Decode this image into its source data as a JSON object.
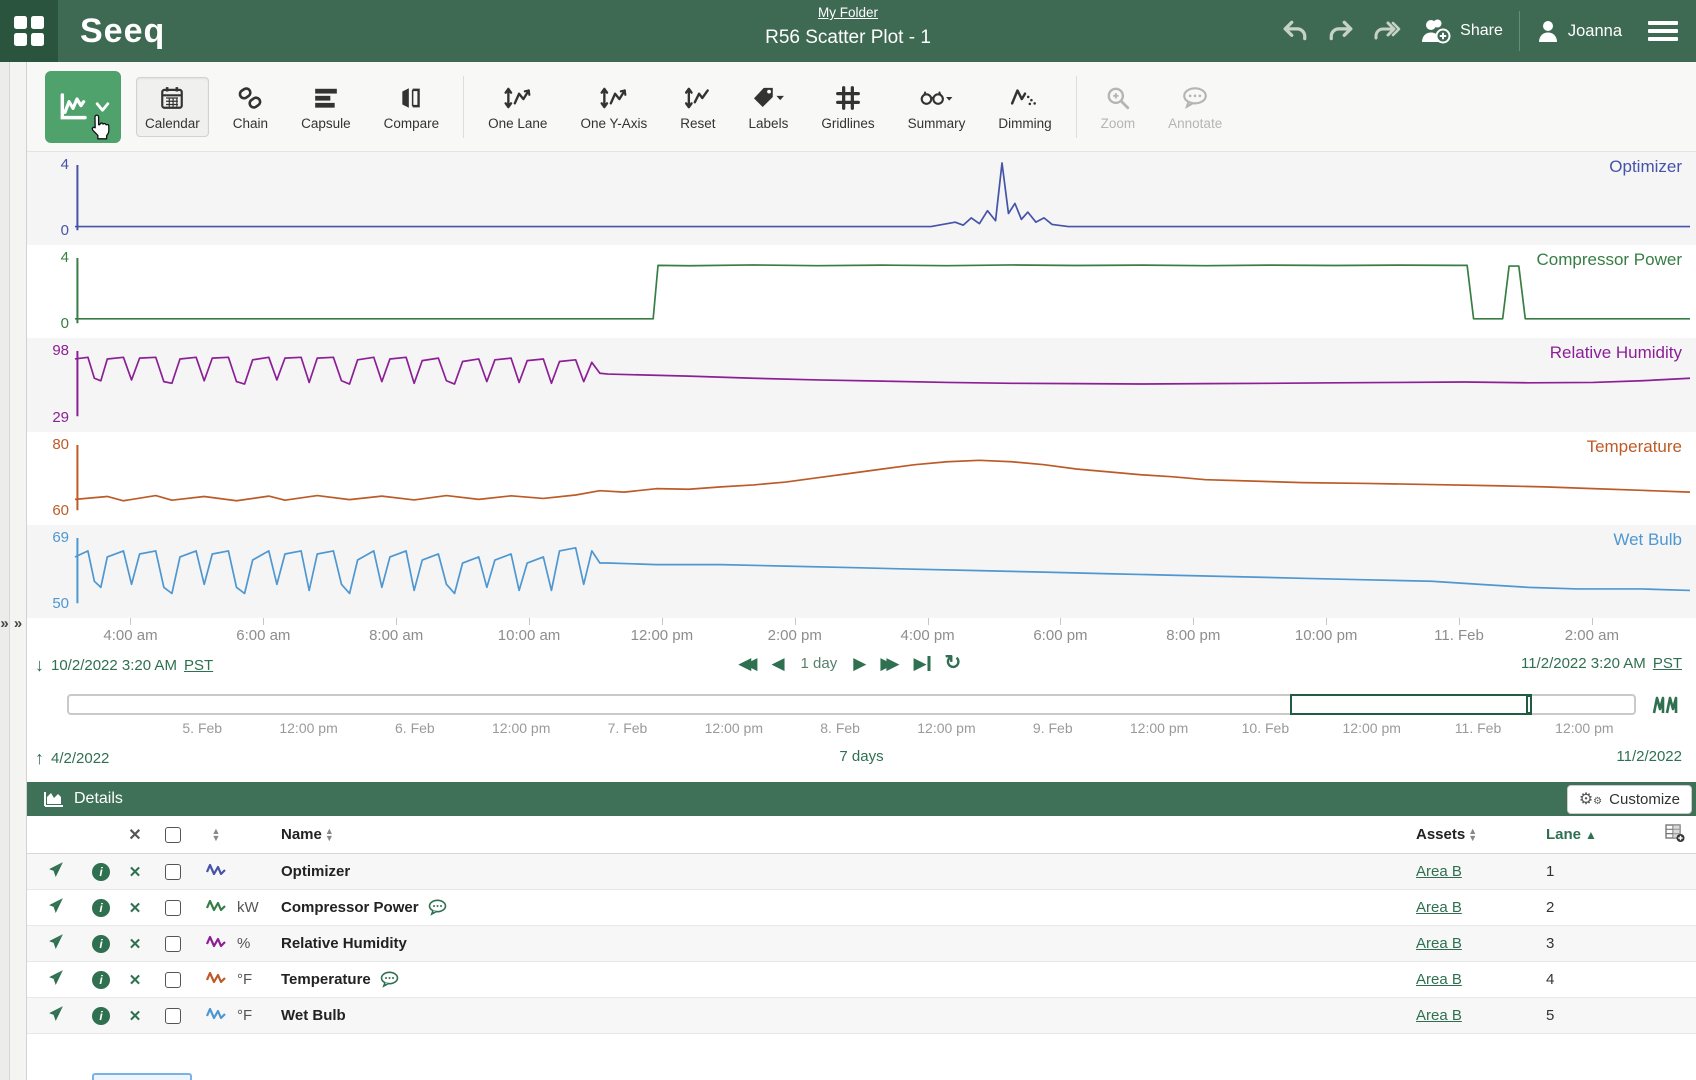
{
  "header": {
    "logo": "Seeq",
    "breadcrumb": "My Folder",
    "title": "R56 Scatter Plot - 1",
    "share": "Share",
    "user": "Joanna"
  },
  "toolbar": {
    "calendar": "Calendar",
    "chain": "Chain",
    "capsule": "Capsule",
    "compare": "Compare",
    "one_lane": "One Lane",
    "one_y_axis": "One Y-Axis",
    "reset": "Reset",
    "labels": "Labels",
    "gridlines": "Gridlines",
    "summary": "Summary",
    "dimming": "Dimming",
    "zoom": "Zoom",
    "annotate": "Annotate"
  },
  "chart_data": {
    "type": "line",
    "x_tick_labels": [
      "4:00 am",
      "6:00 am",
      "8:00 am",
      "10:00 am",
      "12:00 pm",
      "2:00 pm",
      "4:00 pm",
      "6:00 pm",
      "8:00 pm",
      "10:00 pm",
      "11. Feb",
      "2:00 am"
    ],
    "lanes": [
      {
        "name": "Optimizer",
        "color": "#4553A8",
        "y_top": "4",
        "y_bottom": "0",
        "ylim": [
          0,
          4
        ],
        "points": [
          [
            0,
            0
          ],
          [
            0.53,
            0
          ],
          [
            0.545,
            0.3
          ],
          [
            0.55,
            0.1
          ],
          [
            0.555,
            0.6
          ],
          [
            0.56,
            0.2
          ],
          [
            0.565,
            1.1
          ],
          [
            0.57,
            0.4
          ],
          [
            0.574,
            4.4
          ],
          [
            0.578,
            0.9
          ],
          [
            0.582,
            1.6
          ],
          [
            0.586,
            0.5
          ],
          [
            0.59,
            1.0
          ],
          [
            0.595,
            0.3
          ],
          [
            0.6,
            0.6
          ],
          [
            0.605,
            0.15
          ],
          [
            0.615,
            0
          ],
          [
            1,
            0
          ]
        ]
      },
      {
        "name": "Compressor Power",
        "color": "#377D44",
        "y_top": "4",
        "y_bottom": "0",
        "ylim": [
          0,
          4
        ],
        "points": [
          [
            0,
            0.05
          ],
          [
            0.358,
            0.05
          ],
          [
            0.361,
            3.75
          ],
          [
            0.38,
            3.72
          ],
          [
            0.42,
            3.78
          ],
          [
            0.46,
            3.73
          ],
          [
            0.5,
            3.77
          ],
          [
            0.54,
            3.73
          ],
          [
            0.58,
            3.78
          ],
          [
            0.62,
            3.74
          ],
          [
            0.66,
            3.77
          ],
          [
            0.7,
            3.73
          ],
          [
            0.74,
            3.77
          ],
          [
            0.78,
            3.74
          ],
          [
            0.82,
            3.77
          ],
          [
            0.855,
            3.75
          ],
          [
            0.862,
            3.75
          ],
          [
            0.866,
            0.05
          ],
          [
            0.884,
            0.05
          ],
          [
            0.888,
            3.7
          ],
          [
            0.894,
            3.7
          ],
          [
            0.898,
            0.05
          ],
          [
            1,
            0.05
          ]
        ]
      },
      {
        "name": "Relative Humidity",
        "color": "#8C1F96",
        "y_top": "98",
        "y_bottom": "29",
        "ylim": [
          29,
          98
        ],
        "points": [
          [
            0,
            93
          ],
          [
            0.008,
            95
          ],
          [
            0.012,
            70
          ],
          [
            0.016,
            67
          ],
          [
            0.02,
            93
          ],
          [
            0.03,
            95
          ],
          [
            0.035,
            68
          ],
          [
            0.04,
            94
          ],
          [
            0.05,
            95
          ],
          [
            0.055,
            66
          ],
          [
            0.06,
            64
          ],
          [
            0.065,
            93
          ],
          [
            0.075,
            95
          ],
          [
            0.08,
            67
          ],
          [
            0.085,
            94
          ],
          [
            0.095,
            95
          ],
          [
            0.1,
            66
          ],
          [
            0.105,
            63
          ],
          [
            0.11,
            92
          ],
          [
            0.12,
            95
          ],
          [
            0.125,
            68
          ],
          [
            0.13,
            94
          ],
          [
            0.14,
            95
          ],
          [
            0.145,
            65
          ],
          [
            0.15,
            94
          ],
          [
            0.16,
            95
          ],
          [
            0.165,
            67
          ],
          [
            0.17,
            63
          ],
          [
            0.175,
            92
          ],
          [
            0.185,
            95
          ],
          [
            0.19,
            66
          ],
          [
            0.195,
            93
          ],
          [
            0.205,
            95
          ],
          [
            0.21,
            64
          ],
          [
            0.215,
            91
          ],
          [
            0.225,
            94
          ],
          [
            0.23,
            67
          ],
          [
            0.235,
            63
          ],
          [
            0.24,
            90
          ],
          [
            0.25,
            93
          ],
          [
            0.255,
            66
          ],
          [
            0.26,
            92
          ],
          [
            0.27,
            94
          ],
          [
            0.275,
            65
          ],
          [
            0.28,
            91
          ],
          [
            0.29,
            93
          ],
          [
            0.295,
            64
          ],
          [
            0.3,
            90
          ],
          [
            0.31,
            92
          ],
          [
            0.315,
            66
          ],
          [
            0.32,
            89
          ],
          [
            0.325,
            76
          ],
          [
            0.33,
            75
          ],
          [
            0.35,
            74
          ],
          [
            0.38,
            72.5
          ],
          [
            0.42,
            70
          ],
          [
            0.46,
            68
          ],
          [
            0.5,
            66.5
          ],
          [
            0.54,
            65
          ],
          [
            0.58,
            64
          ],
          [
            0.62,
            63.5
          ],
          [
            0.66,
            63
          ],
          [
            0.7,
            63.5
          ],
          [
            0.74,
            64
          ],
          [
            0.78,
            64.5
          ],
          [
            0.82,
            65
          ],
          [
            0.86,
            65.5
          ],
          [
            0.9,
            64.5
          ],
          [
            0.94,
            65
          ],
          [
            0.97,
            67
          ],
          [
            1,
            70
          ]
        ]
      },
      {
        "name": "Temperature",
        "color": "#BD5B28",
        "y_top": "80",
        "y_bottom": "60",
        "ylim": [
          60,
          80
        ],
        "points": [
          [
            0,
            62.5
          ],
          [
            0.02,
            63.5
          ],
          [
            0.03,
            62
          ],
          [
            0.05,
            63.8
          ],
          [
            0.06,
            62.2
          ],
          [
            0.08,
            63.5
          ],
          [
            0.1,
            62
          ],
          [
            0.12,
            63.6
          ],
          [
            0.13,
            62.2
          ],
          [
            0.15,
            63.8
          ],
          [
            0.17,
            62.4
          ],
          [
            0.19,
            63.6
          ],
          [
            0.21,
            62.3
          ],
          [
            0.23,
            63.8
          ],
          [
            0.25,
            62.5
          ],
          [
            0.27,
            63.7
          ],
          [
            0.29,
            62.8
          ],
          [
            0.31,
            64
          ],
          [
            0.325,
            65.5
          ],
          [
            0.34,
            65
          ],
          [
            0.36,
            66.2
          ],
          [
            0.38,
            66
          ],
          [
            0.4,
            66.8
          ],
          [
            0.42,
            67.5
          ],
          [
            0.44,
            68.5
          ],
          [
            0.46,
            70
          ],
          [
            0.48,
            71.5
          ],
          [
            0.5,
            73
          ],
          [
            0.52,
            74.5
          ],
          [
            0.54,
            75.5
          ],
          [
            0.56,
            76
          ],
          [
            0.58,
            75.5
          ],
          [
            0.6,
            74.5
          ],
          [
            0.62,
            73
          ],
          [
            0.64,
            72
          ],
          [
            0.66,
            71
          ],
          [
            0.68,
            70.3
          ],
          [
            0.7,
            69.3
          ],
          [
            0.73,
            68.8
          ],
          [
            0.76,
            68.3
          ],
          [
            0.8,
            68
          ],
          [
            0.84,
            67.6
          ],
          [
            0.88,
            67.2
          ],
          [
            0.91,
            66.8
          ],
          [
            0.94,
            66.2
          ],
          [
            0.97,
            65.6
          ],
          [
            1,
            65
          ]
        ]
      },
      {
        "name": "Wet Bulb",
        "color": "#4E97D1",
        "y_top": "69",
        "y_bottom": "50",
        "ylim": [
          50,
          69
        ],
        "points": [
          [
            0,
            64
          ],
          [
            0.008,
            66
          ],
          [
            0.012,
            56
          ],
          [
            0.016,
            54
          ],
          [
            0.02,
            64
          ],
          [
            0.03,
            66
          ],
          [
            0.035,
            55
          ],
          [
            0.04,
            65
          ],
          [
            0.05,
            66
          ],
          [
            0.055,
            54
          ],
          [
            0.06,
            52
          ],
          [
            0.065,
            64
          ],
          [
            0.075,
            66
          ],
          [
            0.08,
            55
          ],
          [
            0.085,
            65
          ],
          [
            0.095,
            66
          ],
          [
            0.1,
            54
          ],
          [
            0.105,
            52
          ],
          [
            0.11,
            63
          ],
          [
            0.12,
            66
          ],
          [
            0.125,
            55
          ],
          [
            0.13,
            65
          ],
          [
            0.14,
            66
          ],
          [
            0.145,
            53
          ],
          [
            0.15,
            65
          ],
          [
            0.16,
            66
          ],
          [
            0.165,
            55
          ],
          [
            0.17,
            52
          ],
          [
            0.175,
            63
          ],
          [
            0.185,
            66
          ],
          [
            0.19,
            54
          ],
          [
            0.195,
            64
          ],
          [
            0.205,
            66
          ],
          [
            0.21,
            53
          ],
          [
            0.215,
            63
          ],
          [
            0.225,
            65
          ],
          [
            0.23,
            55
          ],
          [
            0.235,
            52
          ],
          [
            0.24,
            62
          ],
          [
            0.25,
            64
          ],
          [
            0.255,
            54
          ],
          [
            0.26,
            63
          ],
          [
            0.27,
            65
          ],
          [
            0.275,
            53
          ],
          [
            0.28,
            62
          ],
          [
            0.29,
            64
          ],
          [
            0.295,
            53
          ],
          [
            0.3,
            66
          ],
          [
            0.31,
            67
          ],
          [
            0.315,
            55
          ],
          [
            0.32,
            66
          ],
          [
            0.325,
            62
          ],
          [
            0.33,
            62
          ],
          [
            0.36,
            61.5
          ],
          [
            0.4,
            61.5
          ],
          [
            0.44,
            61
          ],
          [
            0.48,
            60.5
          ],
          [
            0.52,
            60
          ],
          [
            0.56,
            59.5
          ],
          [
            0.6,
            59
          ],
          [
            0.64,
            58.5
          ],
          [
            0.68,
            58
          ],
          [
            0.72,
            57.5
          ],
          [
            0.76,
            57
          ],
          [
            0.8,
            56.5
          ],
          [
            0.84,
            56
          ],
          [
            0.87,
            55
          ],
          [
            0.9,
            54
          ],
          [
            0.93,
            53.5
          ],
          [
            0.97,
            53.5
          ],
          [
            1,
            53
          ]
        ]
      }
    ]
  },
  "daterange": {
    "start_date": "10/2/2022 3:20 AM",
    "start_tz": "PST",
    "end_date": "11/2/2022 3:20 AM",
    "end_tz": "PST",
    "duration": "1 day"
  },
  "overview": {
    "labels": [
      "5. Feb",
      "12:00 pm",
      "6. Feb",
      "12:00 pm",
      "7. Feb",
      "12:00 pm",
      "8. Feb",
      "12:00 pm",
      "9. Feb",
      "12:00 pm",
      "10. Feb",
      "12:00 pm",
      "11. Feb",
      "12:00 pm"
    ],
    "start": "4/2/2022",
    "duration": "7 days",
    "end": "11/2/2022"
  },
  "details": {
    "title": "Details",
    "customize": "Customize",
    "columns": {
      "name": "Name",
      "assets": "Assets",
      "lane": "Lane"
    },
    "rows": [
      {
        "unit": "",
        "name": "Optimizer",
        "asset": "Area B",
        "lane": "1",
        "color": "#4553A8",
        "comment": false
      },
      {
        "unit": "kW",
        "name": "Compressor Power",
        "asset": "Area B",
        "lane": "2",
        "color": "#377D44",
        "comment": true
      },
      {
        "unit": "%",
        "name": "Relative Humidity",
        "asset": "Area B",
        "lane": "3",
        "color": "#8C1F96",
        "comment": false
      },
      {
        "unit": "°F",
        "name": "Temperature",
        "asset": "Area B",
        "lane": "4",
        "color": "#BD5B28",
        "comment": true
      },
      {
        "unit": "°F",
        "name": "Wet Bulb",
        "asset": "Area B",
        "lane": "5",
        "color": "#4E97D1",
        "comment": false
      }
    ]
  }
}
